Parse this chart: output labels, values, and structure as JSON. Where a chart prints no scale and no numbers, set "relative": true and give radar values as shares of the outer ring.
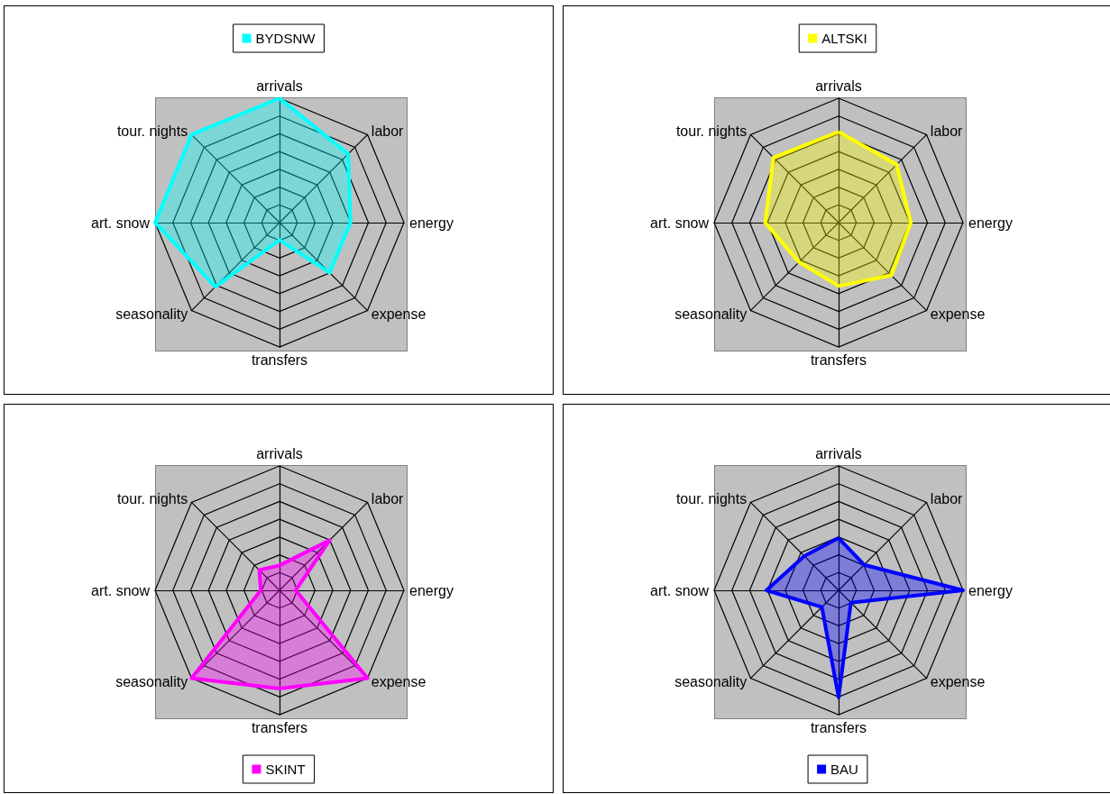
{
  "chart_data": [
    {
      "type": "radar",
      "relative": true,
      "grid": true,
      "legend": "top",
      "categories": [
        "arrivals",
        "labor",
        "energy",
        "expense",
        "transfers",
        "seasonality",
        "art. snow",
        "tour. nights"
      ],
      "series": [
        {
          "name": "BYDSNW",
          "color": "#00ffff",
          "values": [
            1.0,
            0.78,
            0.57,
            0.57,
            0.14,
            0.73,
            1.0,
            1.0
          ]
        }
      ]
    },
    {
      "type": "radar",
      "relative": true,
      "grid": true,
      "legend": "top",
      "categories": [
        "arrivals",
        "labor",
        "energy",
        "expense",
        "transfers",
        "seasonality",
        "art. snow",
        "tour. nights"
      ],
      "series": [
        {
          "name": "ALTSKI",
          "color": "#ffff00",
          "values": [
            0.73,
            0.66,
            0.58,
            0.6,
            0.51,
            0.45,
            0.59,
            0.74
          ]
        }
      ]
    },
    {
      "type": "radar",
      "relative": true,
      "grid": true,
      "legend": "bottom",
      "categories": [
        "arrivals",
        "labor",
        "energy",
        "expense",
        "transfers",
        "seasonality",
        "art. snow",
        "tour. nights"
      ],
      "series": [
        {
          "name": "SKINT",
          "color": "#ff00ff",
          "values": [
            0.2,
            0.57,
            0.13,
            1.0,
            0.79,
            1.0,
            0.15,
            0.23
          ]
        }
      ]
    },
    {
      "type": "radar",
      "relative": true,
      "grid": true,
      "legend": "bottom",
      "categories": [
        "arrivals",
        "labor",
        "energy",
        "expense",
        "transfers",
        "seasonality",
        "art. snow",
        "tour. nights"
      ],
      "series": [
        {
          "name": "BAU",
          "color": "#0000ff",
          "values": [
            0.42,
            0.29,
            1.0,
            0.14,
            0.86,
            0.19,
            0.58,
            0.39
          ]
        }
      ]
    }
  ]
}
